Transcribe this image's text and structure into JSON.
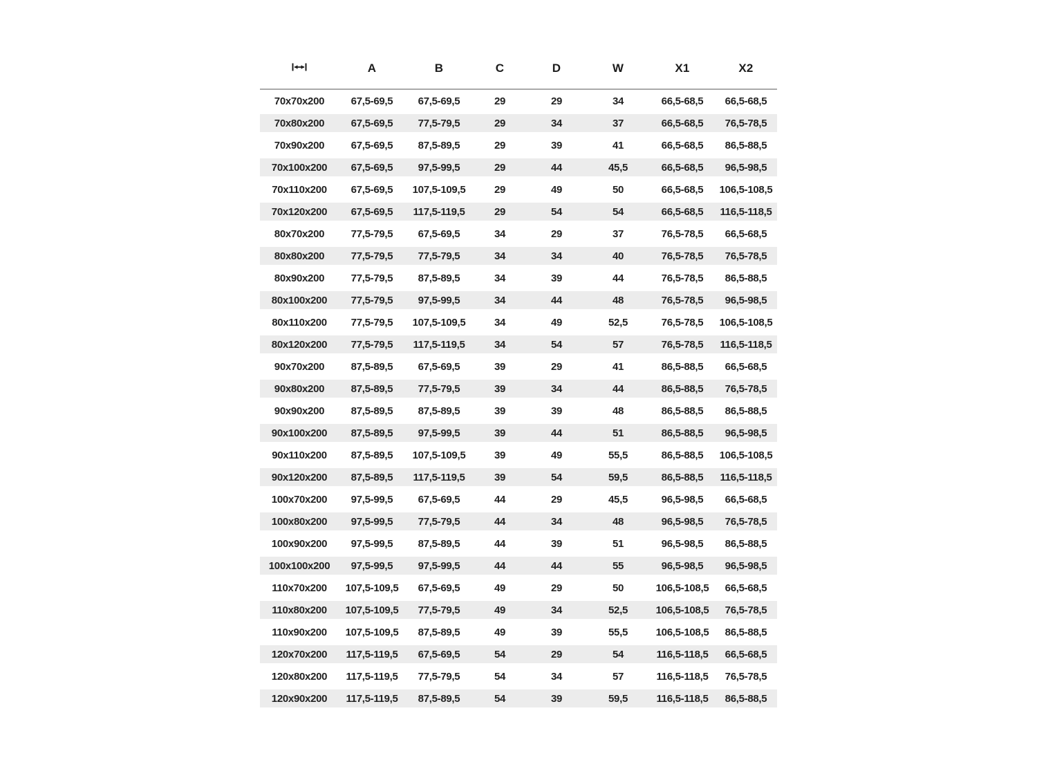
{
  "chart_data": {
    "type": "table",
    "title": "",
    "header_icon": "width-dimension-icon",
    "columns": [
      "",
      "A",
      "B",
      "C",
      "D",
      "W",
      "X1",
      "X2"
    ],
    "rows": [
      [
        "70x70x200",
        "67,5-69,5",
        "67,5-69,5",
        "29",
        "29",
        "34",
        "66,5-68,5",
        "66,5-68,5"
      ],
      [
        "70x80x200",
        "67,5-69,5",
        "77,5-79,5",
        "29",
        "34",
        "37",
        "66,5-68,5",
        "76,5-78,5"
      ],
      [
        "70x90x200",
        "67,5-69,5",
        "87,5-89,5",
        "29",
        "39",
        "41",
        "66,5-68,5",
        "86,5-88,5"
      ],
      [
        "70x100x200",
        "67,5-69,5",
        "97,5-99,5",
        "29",
        "44",
        "45,5",
        "66,5-68,5",
        "96,5-98,5"
      ],
      [
        "70x110x200",
        "67,5-69,5",
        "107,5-109,5",
        "29",
        "49",
        "50",
        "66,5-68,5",
        "106,5-108,5"
      ],
      [
        "70x120x200",
        "67,5-69,5",
        "117,5-119,5",
        "29",
        "54",
        "54",
        "66,5-68,5",
        "116,5-118,5"
      ],
      [
        "80x70x200",
        "77,5-79,5",
        "67,5-69,5",
        "34",
        "29",
        "37",
        "76,5-78,5",
        "66,5-68,5"
      ],
      [
        "80x80x200",
        "77,5-79,5",
        "77,5-79,5",
        "34",
        "34",
        "40",
        "76,5-78,5",
        "76,5-78,5"
      ],
      [
        "80x90x200",
        "77,5-79,5",
        "87,5-89,5",
        "34",
        "39",
        "44",
        "76,5-78,5",
        "86,5-88,5"
      ],
      [
        "80x100x200",
        "77,5-79,5",
        "97,5-99,5",
        "34",
        "44",
        "48",
        "76,5-78,5",
        "96,5-98,5"
      ],
      [
        "80x110x200",
        "77,5-79,5",
        "107,5-109,5",
        "34",
        "49",
        "52,5",
        "76,5-78,5",
        "106,5-108,5"
      ],
      [
        "80x120x200",
        "77,5-79,5",
        "117,5-119,5",
        "34",
        "54",
        "57",
        "76,5-78,5",
        "116,5-118,5"
      ],
      [
        "90x70x200",
        "87,5-89,5",
        "67,5-69,5",
        "39",
        "29",
        "41",
        "86,5-88,5",
        "66,5-68,5"
      ],
      [
        "90x80x200",
        "87,5-89,5",
        "77,5-79,5",
        "39",
        "34",
        "44",
        "86,5-88,5",
        "76,5-78,5"
      ],
      [
        "90x90x200",
        "87,5-89,5",
        "87,5-89,5",
        "39",
        "39",
        "48",
        "86,5-88,5",
        "86,5-88,5"
      ],
      [
        "90x100x200",
        "87,5-89,5",
        "97,5-99,5",
        "39",
        "44",
        "51",
        "86,5-88,5",
        "96,5-98,5"
      ],
      [
        "90x110x200",
        "87,5-89,5",
        "107,5-109,5",
        "39",
        "49",
        "55,5",
        "86,5-88,5",
        "106,5-108,5"
      ],
      [
        "90x120x200",
        "87,5-89,5",
        "117,5-119,5",
        "39",
        "54",
        "59,5",
        "86,5-88,5",
        "116,5-118,5"
      ],
      [
        "100x70x200",
        "97,5-99,5",
        "67,5-69,5",
        "44",
        "29",
        "45,5",
        "96,5-98,5",
        "66,5-68,5"
      ],
      [
        "100x80x200",
        "97,5-99,5",
        "77,5-79,5",
        "44",
        "34",
        "48",
        "96,5-98,5",
        "76,5-78,5"
      ],
      [
        "100x90x200",
        "97,5-99,5",
        "87,5-89,5",
        "44",
        "39",
        "51",
        "96,5-98,5",
        "86,5-88,5"
      ],
      [
        "100x100x200",
        "97,5-99,5",
        "97,5-99,5",
        "44",
        "44",
        "55",
        "96,5-98,5",
        "96,5-98,5"
      ],
      [
        "110x70x200",
        "107,5-109,5",
        "67,5-69,5",
        "49",
        "29",
        "50",
        "106,5-108,5",
        "66,5-68,5"
      ],
      [
        "110x80x200",
        "107,5-109,5",
        "77,5-79,5",
        "49",
        "34",
        "52,5",
        "106,5-108,5",
        "76,5-78,5"
      ],
      [
        "110x90x200",
        "107,5-109,5",
        "87,5-89,5",
        "49",
        "39",
        "55,5",
        "106,5-108,5",
        "86,5-88,5"
      ],
      [
        "120x70x200",
        "117,5-119,5",
        "67,5-69,5",
        "54",
        "29",
        "54",
        "116,5-118,5",
        "66,5-68,5"
      ],
      [
        "120x80x200",
        "117,5-119,5",
        "77,5-79,5",
        "54",
        "34",
        "57",
        "116,5-118,5",
        "76,5-78,5"
      ],
      [
        "120x90x200",
        "117,5-119,5",
        "87,5-89,5",
        "54",
        "39",
        "59,5",
        "116,5-118,5",
        "86,5-88,5"
      ]
    ],
    "layout": {
      "stripe_color": "#ececec",
      "text_color": "#222222",
      "header_rule_color": "#a9a9a9",
      "background": "#ffffff"
    }
  }
}
